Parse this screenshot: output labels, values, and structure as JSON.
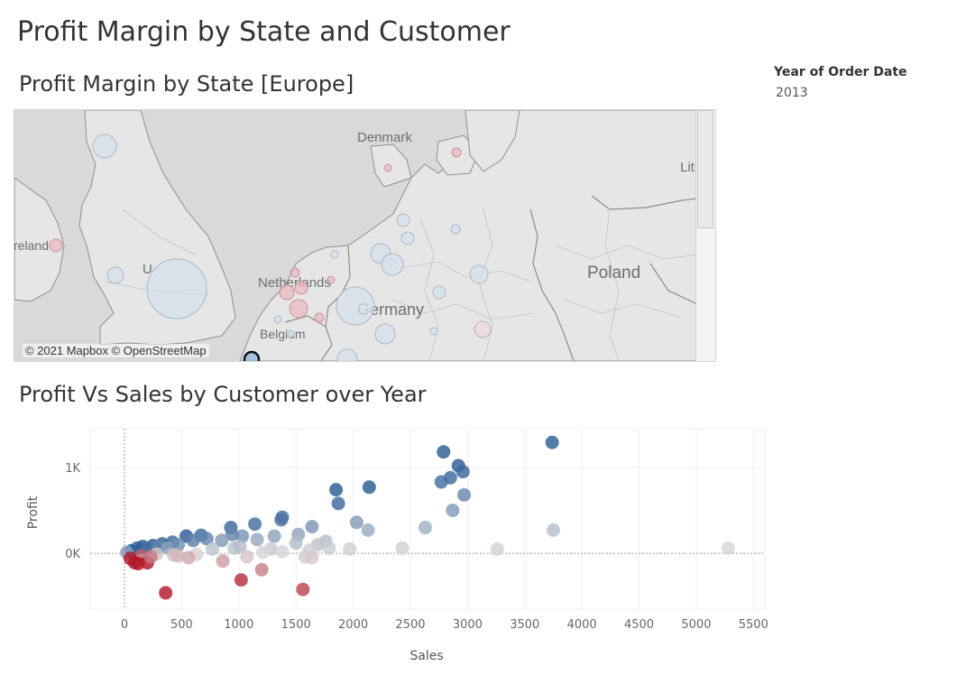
{
  "dashboard": {
    "title": "Profit Margin by State and Customer"
  },
  "filter": {
    "label": "Year of Order Date",
    "value": "2013"
  },
  "map": {
    "title": "Profit Margin by State [Europe]",
    "credit": "© 2021 Mapbox © OpenStreetMap",
    "labels": {
      "denmark": "Denmark",
      "poland": "Poland",
      "netherlands": "Netherlands",
      "germany": "Germany",
      "belgium": "Belgium",
      "ireland": "Ireland",
      "uk": "United Kingdom",
      "lithuania": "Lithuania"
    },
    "colors": {
      "land": "#e6e6e6",
      "sea": "#d9d9d9",
      "border": "#9a9a9a",
      "bubble_blue": "#d5e1ec",
      "bubble_red": "#e8b9bf"
    }
  },
  "chart_data": {
    "type": "scatter",
    "title": "Profit Vs Sales by Customer over Year",
    "xlabel": "Sales",
    "ylabel": "Profit",
    "xlim": [
      -300,
      5600
    ],
    "ylim": [
      -650,
      1450
    ],
    "xticks": [
      0,
      500,
      1000,
      1500,
      2000,
      2500,
      3000,
      3500,
      4000,
      4500,
      5000,
      5500
    ],
    "xtick_labels": [
      "0",
      "500",
      "1000",
      "1500",
      "2000",
      "2500",
      "3000",
      "3500",
      "4000",
      "4500",
      "5000",
      "5500"
    ],
    "yticks": [
      0,
      1000
    ],
    "ytick_labels": [
      "0K",
      "1K"
    ],
    "grid": true,
    "color_scale": {
      "negative": "#b2182b",
      "neutral": "#d9d9d9",
      "positive": "#2c5d96"
    },
    "points": [
      {
        "x": 3740,
        "y": 1290
      },
      {
        "x": 2790,
        "y": 1180
      },
      {
        "x": 2920,
        "y": 1020
      },
      {
        "x": 2960,
        "y": 950
      },
      {
        "x": 2850,
        "y": 880
      },
      {
        "x": 2770,
        "y": 830
      },
      {
        "x": 2140,
        "y": 770
      },
      {
        "x": 1850,
        "y": 740
      },
      {
        "x": 2970,
        "y": 680
      },
      {
        "x": 1870,
        "y": 580
      },
      {
        "x": 2870,
        "y": 500
      },
      {
        "x": 1380,
        "y": 420
      },
      {
        "x": 1370,
        "y": 390
      },
      {
        "x": 2030,
        "y": 360
      },
      {
        "x": 1140,
        "y": 340
      },
      {
        "x": 1640,
        "y": 310
      },
      {
        "x": 930,
        "y": 300
      },
      {
        "x": 2630,
        "y": 300
      },
      {
        "x": 2130,
        "y": 270
      },
      {
        "x": 3750,
        "y": 270
      },
      {
        "x": 1520,
        "y": 220
      },
      {
        "x": 1310,
        "y": 200
      },
      {
        "x": 1030,
        "y": 200
      },
      {
        "x": 940,
        "y": 220
      },
      {
        "x": 670,
        "y": 210
      },
      {
        "x": 540,
        "y": 200
      },
      {
        "x": 1760,
        "y": 140
      },
      {
        "x": 1500,
        "y": 120
      },
      {
        "x": 1690,
        "y": 100
      },
      {
        "x": 1160,
        "y": 160
      },
      {
        "x": 850,
        "y": 150
      },
      {
        "x": 720,
        "y": 170
      },
      {
        "x": 600,
        "y": 150
      },
      {
        "x": 420,
        "y": 130
      },
      {
        "x": 330,
        "y": 110
      },
      {
        "x": 250,
        "y": 90
      },
      {
        "x": 160,
        "y": 80
      },
      {
        "x": 110,
        "y": 60
      },
      {
        "x": 60,
        "y": 30
      },
      {
        "x": 20,
        "y": 10
      },
      {
        "x": 200,
        "y": 60
      },
      {
        "x": 300,
        "y": 70
      },
      {
        "x": 380,
        "y": 60
      },
      {
        "x": 470,
        "y": 100
      },
      {
        "x": 770,
        "y": 50
      },
      {
        "x": 960,
        "y": 60
      },
      {
        "x": 1010,
        "y": 80
      },
      {
        "x": 1280,
        "y": 50
      },
      {
        "x": 1790,
        "y": 60
      },
      {
        "x": 1970,
        "y": 50
      },
      {
        "x": 2430,
        "y": 60
      },
      {
        "x": 3260,
        "y": 50
      },
      {
        "x": 5280,
        "y": 60
      },
      {
        "x": 1210,
        "y": 10
      },
      {
        "x": 1380,
        "y": 20
      },
      {
        "x": 1620,
        "y": 40
      },
      {
        "x": 630,
        "y": -10
      },
      {
        "x": 430,
        "y": -20
      },
      {
        "x": 280,
        "y": -10
      },
      {
        "x": 140,
        "y": -30
      },
      {
        "x": 1070,
        "y": -40
      },
      {
        "x": 1580,
        "y": -40
      },
      {
        "x": 1640,
        "y": -50
      },
      {
        "x": 560,
        "y": -50
      },
      {
        "x": 470,
        "y": -30
      },
      {
        "x": 860,
        "y": -90
      },
      {
        "x": 1200,
        "y": -190
      },
      {
        "x": 1020,
        "y": -310
      },
      {
        "x": 1560,
        "y": -420
      },
      {
        "x": 360,
        "y": -460
      },
      {
        "x": 90,
        "y": -110
      },
      {
        "x": 120,
        "y": -120
      },
      {
        "x": 200,
        "y": -110
      },
      {
        "x": 50,
        "y": -60
      },
      {
        "x": 230,
        "y": -40
      }
    ]
  }
}
